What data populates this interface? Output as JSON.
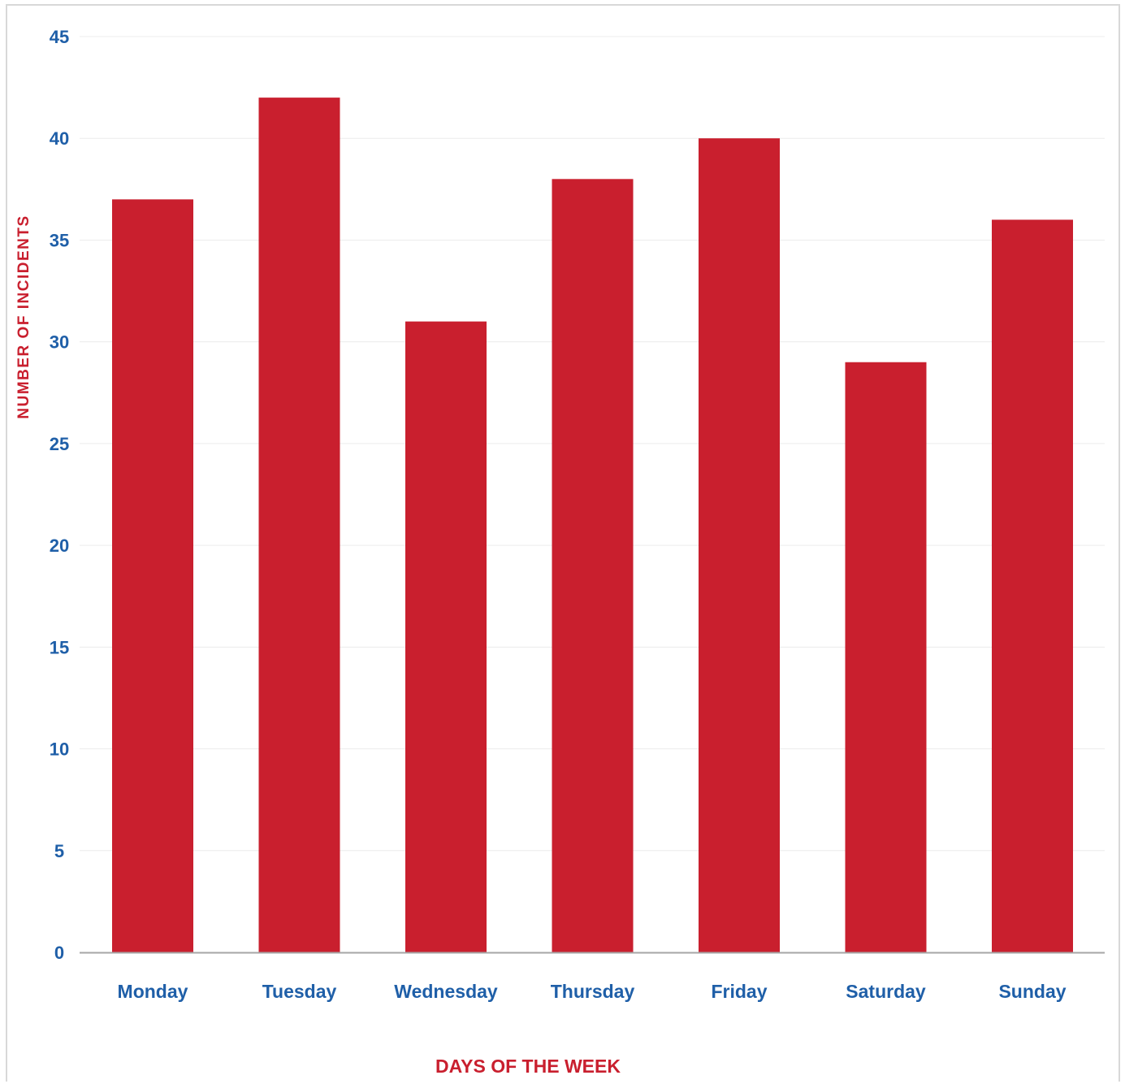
{
  "chart_data": {
    "type": "bar",
    "title": "",
    "xlabel": "DAYS OF THE WEEK",
    "ylabel": "NUMBER OF INCIDENTS",
    "categories": [
      "Monday",
      "Tuesday",
      "Wednesday",
      "Thursday",
      "Friday",
      "Saturday",
      "Sunday"
    ],
    "values": [
      37,
      42,
      31,
      38,
      40,
      29,
      36
    ],
    "ylim": [
      0,
      45
    ],
    "yticks": [
      0,
      5,
      10,
      15,
      20,
      25,
      30,
      35,
      40,
      45
    ],
    "grid": true,
    "legend": "none",
    "colors": {
      "bar": "#c91f2e",
      "tick_text": "#1f5fa8",
      "axis_title": "#c91f2e",
      "grid": "#ececec",
      "axis_line": "#a6a6a6"
    }
  }
}
